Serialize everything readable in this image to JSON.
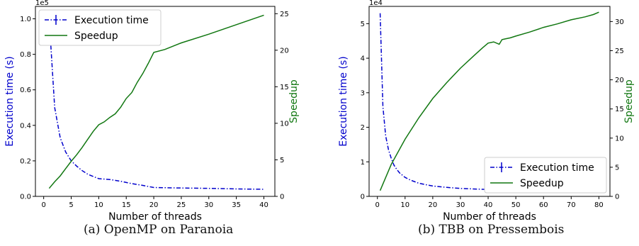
{
  "chart_data": [
    {
      "type": "line",
      "caption": "(a) OpenMP on Paranoia",
      "xlabel": "Number of threads",
      "ylabel_left": "Execution time (s)",
      "ylabel_right": "Speedup",
      "left_axis_multiplier": "1e5",
      "xlim": [
        -1.5,
        42
      ],
      "ylim_left": [
        0,
        1.07
      ],
      "ylim_right": [
        0,
        26.0
      ],
      "x_ticks": [
        0,
        5,
        10,
        15,
        20,
        25,
        30,
        35,
        40
      ],
      "y_left_ticks": [
        "0.0",
        "0.2",
        "0.4",
        "0.6",
        "0.8",
        "1.0"
      ],
      "y_right_ticks": [
        0,
        5,
        10,
        15,
        20,
        25
      ],
      "legend": {
        "position": "top-left",
        "entries": [
          "Execution time",
          "Speedup"
        ]
      },
      "series": [
        {
          "name": "Execution time",
          "axis": "left",
          "color": "#0000cc",
          "style": "dashdot",
          "x": [
            1,
            2,
            3,
            4,
            5,
            6,
            7,
            8,
            9,
            10,
            12,
            14,
            16,
            18,
            20,
            25,
            30,
            35,
            40
          ],
          "y": [
            1.0,
            0.5,
            0.33,
            0.25,
            0.2,
            0.17,
            0.145,
            0.125,
            0.112,
            0.1,
            0.095,
            0.085,
            0.072,
            0.062,
            0.05,
            0.047,
            0.045,
            0.042,
            0.04
          ]
        },
        {
          "name": "Speedup",
          "axis": "right",
          "color": "#117711",
          "style": "solid",
          "x": [
            1,
            2,
            3,
            4,
            5,
            6,
            7,
            8,
            9,
            10,
            11,
            12,
            13,
            14,
            15,
            16,
            17,
            18,
            19,
            20,
            22,
            25,
            30,
            35,
            40
          ],
          "y": [
            1.1,
            2.0,
            2.8,
            3.8,
            4.8,
            5.7,
            6.7,
            7.8,
            8.9,
            9.8,
            10.2,
            10.8,
            11.3,
            12.2,
            13.4,
            14.2,
            15.6,
            16.8,
            18.2,
            19.7,
            20.1,
            21.0,
            22.2,
            23.5,
            24.8
          ]
        }
      ]
    },
    {
      "type": "line",
      "caption": "(b) TBB on Pressembois",
      "xlabel": "Number of threads",
      "ylabel_left": "Execution time (s)",
      "ylabel_right": "Speedup",
      "left_axis_multiplier": "1e4",
      "xlim": [
        -3,
        84
      ],
      "ylim_left": [
        0,
        5.5
      ],
      "ylim_right": [
        0,
        32.6
      ],
      "x_ticks": [
        0,
        10,
        20,
        30,
        40,
        50,
        60,
        70,
        80
      ],
      "y_left_ticks": [
        "0",
        "1",
        "2",
        "3",
        "4",
        "5"
      ],
      "y_right_ticks": [
        0,
        5,
        10,
        15,
        20,
        25,
        30
      ],
      "legend": {
        "position": "bottom-right",
        "entries": [
          "Execution time",
          "Speedup"
        ]
      },
      "series": [
        {
          "name": "Execution time",
          "axis": "left",
          "color": "#0000cc",
          "style": "dashdot",
          "x": [
            1,
            2,
            3,
            4,
            5,
            6,
            7,
            8,
            10,
            12,
            15,
            20,
            25,
            30,
            40,
            50,
            60,
            70,
            80
          ],
          "y": [
            5.3,
            2.6,
            1.75,
            1.35,
            1.1,
            0.9,
            0.78,
            0.68,
            0.55,
            0.47,
            0.38,
            0.3,
            0.26,
            0.23,
            0.2,
            0.18,
            0.17,
            0.165,
            0.16
          ]
        },
        {
          "name": "Speedup",
          "axis": "right",
          "color": "#117711",
          "style": "solid",
          "x": [
            1,
            5,
            10,
            15,
            20,
            25,
            30,
            35,
            38,
            40,
            42,
            44,
            45,
            46,
            48,
            50,
            55,
            60,
            65,
            70,
            75,
            78,
            80
          ],
          "y": [
            1,
            5.5,
            9.8,
            13.5,
            16.8,
            19.5,
            22,
            24.2,
            25.5,
            26.3,
            26.5,
            26.1,
            26.9,
            27,
            27.2,
            27.5,
            28.2,
            29,
            29.6,
            30.3,
            30.8,
            31.2,
            31.6
          ]
        }
      ]
    }
  ]
}
